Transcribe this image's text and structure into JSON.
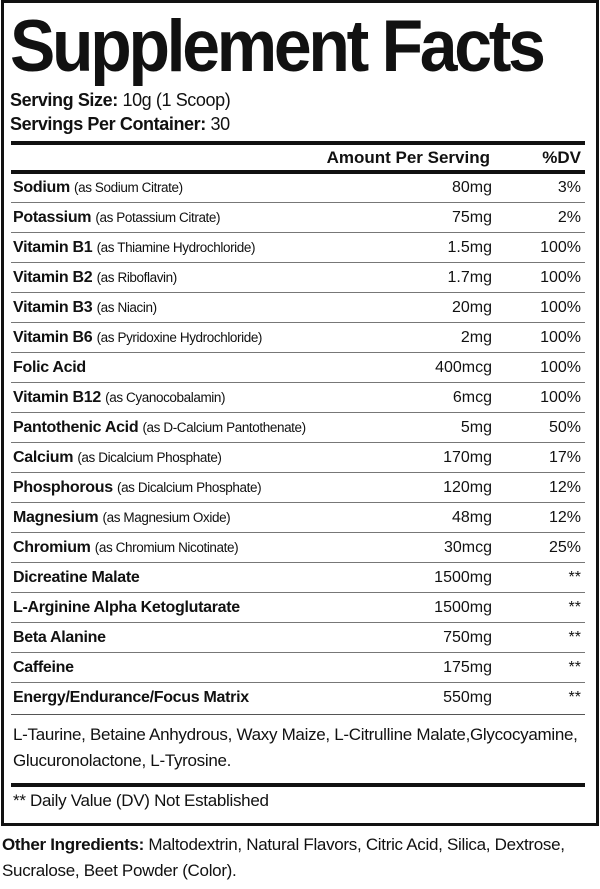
{
  "title": "Supplement Facts",
  "serving_size": {
    "label": "Serving Size:",
    "value": "10g (1 Scoop)"
  },
  "servings_per_container": {
    "label": "Servings Per Container:",
    "value": "30"
  },
  "header": {
    "amount": "Amount Per Serving",
    "dv": "%DV"
  },
  "rows": [
    {
      "name": "Sodium",
      "source": "(as Sodium Citrate)",
      "amount": "80mg",
      "dv": "3%"
    },
    {
      "name": "Potassium",
      "source": "(as Potassium Citrate)",
      "amount": "75mg",
      "dv": "2%"
    },
    {
      "name": "Vitamin B1",
      "source": "(as Thiamine Hydrochloride)",
      "amount": "1.5mg",
      "dv": "100%"
    },
    {
      "name": "Vitamin B2",
      "source": "(as Riboflavin)",
      "amount": "1.7mg",
      "dv": "100%"
    },
    {
      "name": "Vitamin B3",
      "source": "(as Niacin)",
      "amount": "20mg",
      "dv": "100%"
    },
    {
      "name": "Vitamin B6",
      "source": "(as Pyridoxine Hydrochloride)",
      "amount": "2mg",
      "dv": "100%"
    },
    {
      "name": "Folic Acid",
      "source": "",
      "amount": "400mcg",
      "dv": "100%"
    },
    {
      "name": "Vitamin B12",
      "source": "(as Cyanocobalamin)",
      "amount": "6mcg",
      "dv": "100%"
    },
    {
      "name": "Pantothenic Acid",
      "source": "(as D-Calcium Pantothenate)",
      "amount": "5mg",
      "dv": "50%"
    },
    {
      "name": "Calcium",
      "source": "(as Dicalcium Phosphate)",
      "amount": "170mg",
      "dv": "17%"
    },
    {
      "name": "Phosphorous",
      "source": "(as Dicalcium Phosphate)",
      "amount": "120mg",
      "dv": "12%"
    },
    {
      "name": "Magnesium",
      "source": "(as Magnesium Oxide)",
      "amount": "48mg",
      "dv": "12%"
    },
    {
      "name": "Chromium",
      "source": "(as Chromium Nicotinate)",
      "amount": "30mcg",
      "dv": "25%"
    },
    {
      "name": "Dicreatine Malate",
      "source": "",
      "amount": "1500mg",
      "dv": "**"
    },
    {
      "name": "L-Arginine Alpha Ketoglutarate",
      "source": "",
      "amount": "1500mg",
      "dv": "**"
    },
    {
      "name": "Beta Alanine",
      "source": "",
      "amount": "750mg",
      "dv": "**"
    },
    {
      "name": "Caffeine",
      "source": "",
      "amount": "175mg",
      "dv": "**"
    },
    {
      "name": "Energy/Endurance/Focus Matrix",
      "source": "",
      "amount": "550mg",
      "dv": "**"
    }
  ],
  "blend_ingredients": "L-Taurine, Betaine Anhydrous, Waxy Maize,  L-Citrulline Malate,Glycocyamine, Glucuronolactone, L-Tyrosine.",
  "footnote": "** Daily Value (DV) Not Established",
  "other_ingredients": {
    "label": "Other Ingredients:",
    "value": "Maltodextrin, Natural Flavors, Citric Acid, Silica, Dextrose, Sucralose, Beet Powder (Color)."
  }
}
